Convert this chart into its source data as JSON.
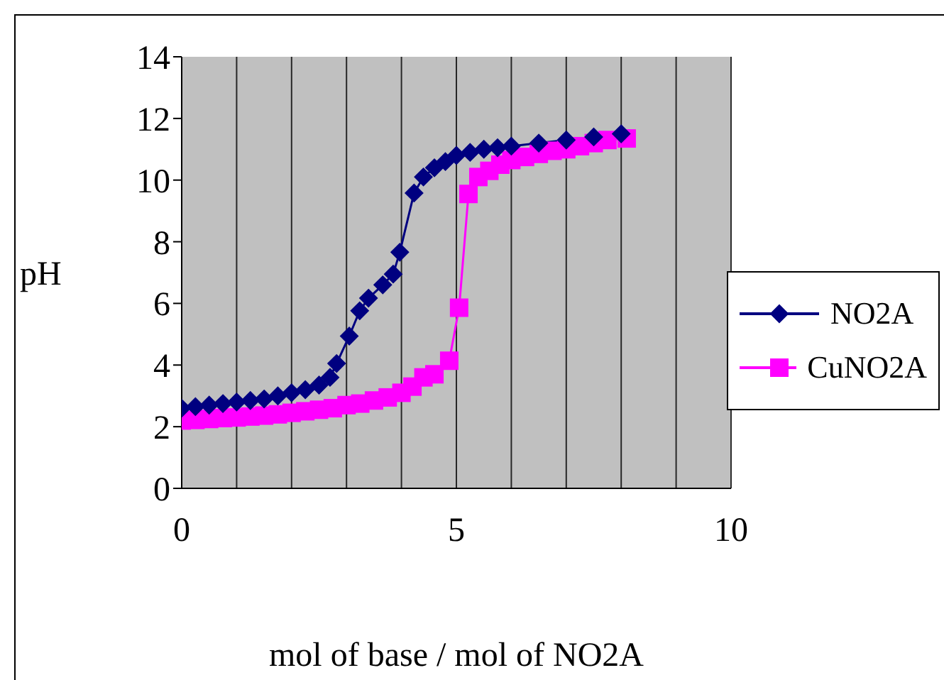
{
  "chart_data": {
    "type": "line",
    "xlabel": "mol of base / mol of NO2A",
    "ylabel": "pH",
    "xlim": [
      0,
      10
    ],
    "xticks": [
      0,
      {
        "value": 1,
        "label": null
      },
      {
        "value": 2,
        "label": null
      },
      {
        "value": 3,
        "label": null
      },
      {
        "value": 4,
        "label": null
      },
      5,
      {
        "value": 6,
        "label": null
      },
      {
        "value": 7,
        "label": null
      },
      {
        "value": 8,
        "label": null
      },
      {
        "value": 9,
        "label": null
      },
      10
    ],
    "ylim": [
      0,
      14
    ],
    "yticks": [
      0,
      2,
      4,
      6,
      8,
      10,
      12,
      14
    ],
    "grid": "x",
    "legend": "right",
    "line_style": "solid",
    "series": [
      {
        "name": "NO2A",
        "color": "#000080",
        "marker": "diamond",
        "x": [
          0,
          0.25,
          0.5,
          0.75,
          1,
          1.25,
          1.5,
          1.75,
          2,
          2.25,
          2.5,
          2.7,
          2.82,
          3.05,
          3.24,
          3.4,
          3.66,
          3.85,
          3.97,
          4.23,
          4.4,
          4.6,
          4.8,
          5,
          5.25,
          5.5,
          5.75,
          6,
          6.5,
          7,
          7.5,
          8
        ],
        "values": [
          2.6,
          2.65,
          2.7,
          2.75,
          2.8,
          2.85,
          2.9,
          3.0,
          3.1,
          3.2,
          3.35,
          3.6,
          4.05,
          4.94,
          5.76,
          6.17,
          6.6,
          6.95,
          7.66,
          9.58,
          10.1,
          10.4,
          10.6,
          10.8,
          10.9,
          11.0,
          11.05,
          11.1,
          11.2,
          11.3,
          11.4,
          11.5
        ]
      },
      {
        "name": "CuNO2A",
        "color": "#ff00ff",
        "marker": "square",
        "x": [
          0,
          0.25,
          0.5,
          0.75,
          1,
          1.25,
          1.5,
          1.75,
          2,
          2.25,
          2.5,
          2.75,
          3,
          3.25,
          3.5,
          3.75,
          4,
          4.2,
          4.4,
          4.6,
          4.87,
          5.05,
          5.22,
          5.4,
          5.6,
          5.8,
          6,
          6.25,
          6.5,
          6.75,
          7,
          7.25,
          7.5,
          7.75,
          8.1
        ],
        "values": [
          2.2,
          2.22,
          2.25,
          2.28,
          2.3,
          2.33,
          2.36,
          2.4,
          2.45,
          2.5,
          2.55,
          2.6,
          2.7,
          2.75,
          2.85,
          2.95,
          3.1,
          3.3,
          3.6,
          3.7,
          4.14,
          5.86,
          9.55,
          10.1,
          10.3,
          10.5,
          10.65,
          10.75,
          10.85,
          10.95,
          11.0,
          11.1,
          11.2,
          11.3,
          11.35
        ]
      }
    ]
  }
}
